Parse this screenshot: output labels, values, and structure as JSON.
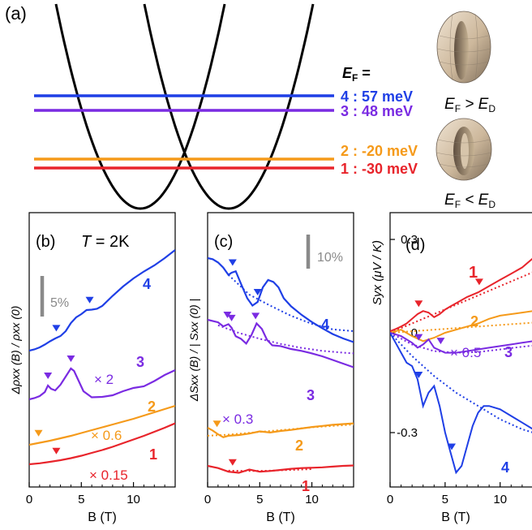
{
  "colors": {
    "blue": "#1f3fe6",
    "violet": "#7a2be2",
    "orange": "#f59a1a",
    "red": "#e8242b",
    "gray": "#8a8a8a",
    "black": "#000000"
  },
  "panel_a": {
    "label": "(a)",
    "ef_title": "E",
    "ef_title_sub": "F",
    "ef_title_suffix": " =",
    "levels": [
      {
        "label": "4 : 57 meV",
        "color": "#1f3fe6"
      },
      {
        "label": "3 : 48 meV",
        "color": "#7a2be2"
      },
      {
        "label": "2 : -20 meV",
        "color": "#f59a1a"
      },
      {
        "label": "1 : -30 meV",
        "color": "#e8242b"
      }
    ],
    "fermi_surfaces": [
      {
        "relation": "E_F > E_D",
        "l1": "E",
        "s1": "F",
        "op": " > E",
        "s2": "D"
      },
      {
        "relation": "E_F < E_D",
        "l1": "E",
        "s1": "F",
        "op": " < E",
        "s2": "D"
      }
    ]
  },
  "chart_data": [
    {
      "type": "line",
      "panel": "(b)",
      "annotation": "T = 2K",
      "annotation_parts": {
        "t": "T",
        "rest": " = 2K"
      },
      "ylabel": "Δρxx (B) / ρxx (0)",
      "xlabel": "B (T)",
      "xlim": [
        0,
        14
      ],
      "xticks": [
        0,
        5,
        10
      ],
      "yticks": [],
      "scale_bar": "5%",
      "scale_bar_value": 5,
      "series": [
        {
          "name": "4",
          "color": "#1f3fe6",
          "x": [
            0,
            0.5,
            1,
            1.5,
            2,
            2.5,
            3,
            3.5,
            4,
            4.5,
            5,
            5.5,
            6,
            6.5,
            7,
            8,
            9,
            10,
            11,
            12,
            13,
            14
          ],
          "y": [
            0,
            0.3,
            0.8,
            1.5,
            2.3,
            3.0,
            3.6,
            4.8,
            6.8,
            8.2,
            9.0,
            10.0,
            10.1,
            10.3,
            11.0,
            13.5,
            15.8,
            17.8,
            19.5,
            21.0,
            22.8,
            24.8
          ]
        },
        {
          "name": "3",
          "color": "#7a2be2",
          "multiplier": "× 2",
          "x": [
            0,
            0.5,
            1,
            1.5,
            1.8,
            2.1,
            2.5,
            3,
            3.5,
            4,
            4.3,
            4.7,
            5.2,
            6,
            7,
            8,
            9,
            10,
            11,
            12,
            13,
            14
          ],
          "y": [
            0,
            0.3,
            0.8,
            1.8,
            3.4,
            2.6,
            2.2,
            3.6,
            5.6,
            7.6,
            7.0,
            4.8,
            2.0,
            0.5,
            0.6,
            1.0,
            2.0,
            2.8,
            3.2,
            4.5,
            6.0,
            7.2
          ]
        },
        {
          "name": "2",
          "color": "#f59a1a",
          "multiplier": "× 0.6",
          "x": [
            0,
            1,
            2,
            3,
            4,
            5,
            6,
            7,
            8,
            9,
            10,
            11,
            12,
            13,
            14
          ],
          "y": [
            0,
            0.5,
            1.0,
            1.6,
            2.2,
            2.9,
            3.6,
            4.3,
            5.0,
            5.7,
            6.4,
            7.2,
            8.0,
            8.8,
            9.6
          ]
        },
        {
          "name": "1",
          "color": "#e8242b",
          "multiplier": "× 0.15",
          "x": [
            0,
            1,
            2,
            3,
            4,
            5,
            6,
            7,
            8,
            9,
            10,
            11,
            12,
            13,
            14
          ],
          "y": [
            0,
            0.25,
            0.6,
            1.0,
            1.5,
            2.1,
            2.8,
            3.5,
            4.3,
            5.2,
            6.1,
            7.0,
            8.0,
            9.0,
            10.1
          ]
        }
      ],
      "markers": [
        {
          "series": "4",
          "x": [
            2.6,
            5.8
          ]
        },
        {
          "series": "3",
          "x": [
            1.8,
            4.0
          ]
        },
        {
          "series": "2",
          "x": [
            0.9
          ]
        },
        {
          "series": "1",
          "x": [
            2.6
          ]
        }
      ]
    },
    {
      "type": "line",
      "panel": "(c)",
      "ylabel": "ΔSxx (B) / | Sxx (0) |",
      "xlabel": "B (T)",
      "xlim": [
        0,
        14
      ],
      "xticks": [
        0,
        5,
        10
      ],
      "yticks": [],
      "scale_bar": "10%",
      "scale_bar_value": 10,
      "series": [
        {
          "name": "4",
          "color": "#1f3fe6",
          "x": [
            0,
            0.5,
            1,
            1.5,
            2,
            2.3,
            2.7,
            3.2,
            3.8,
            4.3,
            4.8,
            5.3,
            5.8,
            6.3,
            6.8,
            7.3,
            8,
            9,
            10,
            11,
            12,
            13,
            14
          ],
          "y": [
            0,
            -0.3,
            -1.2,
            -2.6,
            -4.6,
            -4.0,
            -3.6,
            -7.0,
            -11.0,
            -13.0,
            -12.0,
            -8.0,
            -6.0,
            -6.5,
            -8.0,
            -11.0,
            -13.2,
            -15.5,
            -17.5,
            -19.2,
            -20.8,
            -22.0,
            -23.0
          ]
        },
        {
          "name": "3",
          "color": "#7a2be2",
          "multiplier": "× 0.3",
          "x": [
            0,
            1,
            1.5,
            2,
            2.3,
            2.7,
            3.2,
            3.7,
            4.2,
            4.7,
            5.2,
            5.7,
            6.2,
            7,
            8,
            9,
            10,
            11,
            12,
            13,
            14
          ],
          "y": [
            0,
            -0.7,
            -1.8,
            -1.2,
            -2.2,
            -4.5,
            -5.2,
            -6.5,
            -4.2,
            -1.0,
            -2.5,
            -5.5,
            -7.0,
            -7.2,
            -8.0,
            -8.5,
            -9.2,
            -10.0,
            -11.0,
            -12.0,
            -13.0
          ]
        },
        {
          "name": "2",
          "color": "#f59a1a",
          "x": [
            0,
            0.5,
            1,
            1.5,
            2,
            3,
            4,
            5,
            6,
            7,
            8,
            9,
            10,
            11,
            12,
            13,
            14
          ],
          "y": [
            0,
            -0.8,
            -1.8,
            -2.6,
            -2.2,
            -2.0,
            -1.6,
            -1.0,
            -1.3,
            -0.9,
            -0.6,
            -0.2,
            0.2,
            0.5,
            0.8,
            1.0,
            1.2
          ]
        },
        {
          "name": "1",
          "color": "#e8242b",
          "x": [
            0,
            1,
            2,
            3,
            4,
            5,
            6,
            7,
            8,
            9,
            10,
            11,
            12,
            13,
            14
          ],
          "y": [
            0,
            -0.6,
            -1.6,
            -1.9,
            -1.0,
            -1.6,
            -1.4,
            -1.1,
            -0.8,
            -0.6,
            -0.5,
            -0.4,
            -0.2,
            0.0,
            0.1
          ]
        }
      ],
      "markers": [
        {
          "series": "4",
          "x": [
            2.4,
            4.8
          ]
        },
        {
          "series": "3",
          "x": [
            1.9,
            2.3,
            4.6
          ]
        },
        {
          "series": "2",
          "x": [
            0.9
          ]
        },
        {
          "series": "1",
          "x": [
            2.4
          ]
        }
      ],
      "fits": [
        {
          "series": "4",
          "x": [
            2,
            4,
            6,
            8,
            10,
            12,
            14
          ],
          "y": [
            -4.6,
            -10.0,
            -13.0,
            -15.8,
            -18.0,
            -19.5,
            -20.0
          ]
        },
        {
          "series": "3",
          "x": [
            1,
            3,
            5,
            7,
            9,
            11,
            13,
            14
          ],
          "y": [
            -1.5,
            -3.6,
            -5.2,
            -6.6,
            -7.7,
            -8.5,
            -9.0,
            -9.2
          ]
        },
        {
          "series": "2",
          "x": [
            0,
            2,
            4,
            6,
            8,
            10,
            12,
            14
          ],
          "y": [
            -2.2,
            -1.9,
            -1.4,
            -0.9,
            -0.4,
            0.1,
            0.5,
            0.9
          ]
        },
        {
          "series": "1",
          "x": [
            2,
            4,
            6,
            8,
            10
          ],
          "y": [
            -1.3,
            -1.4,
            -1.3,
            -1.1,
            -0.9
          ]
        }
      ]
    },
    {
      "type": "line",
      "panel": "(d)",
      "ylabel": "Syx (μV / K)",
      "xlabel": "B (T)",
      "xlim": [
        0,
        14
      ],
      "ylim": [
        -0.5,
        0.35
      ],
      "xticks": [
        0,
        5,
        10
      ],
      "yticks": [
        0.3,
        0,
        -0.3
      ],
      "ytick_labels": [
        "0.3",
        "0",
        "-0.3"
      ],
      "series": [
        {
          "name": "1",
          "color": "#e8242b",
          "x": [
            0,
            0.5,
            1,
            1.5,
            2,
            2.5,
            3,
            3.5,
            4,
            4.5,
            5,
            5.5,
            6,
            6.5,
            7,
            8,
            9,
            10,
            11,
            12,
            13,
            14
          ],
          "y": [
            0.005,
            0.012,
            0.02,
            0.03,
            0.045,
            0.06,
            0.07,
            0.065,
            0.05,
            0.06,
            0.075,
            0.085,
            0.095,
            0.105,
            0.115,
            0.13,
            0.15,
            0.17,
            0.19,
            0.21,
            0.24,
            0.24
          ]
        },
        {
          "name": "2",
          "color": "#f59a1a",
          "x": [
            0,
            1,
            2,
            3,
            4,
            5,
            6,
            7,
            8,
            9,
            10,
            11,
            12,
            13,
            14
          ],
          "y": [
            0.0,
            0.01,
            -0.01,
            -0.025,
            -0.015,
            0.0,
            0.01,
            0.02,
            0.03,
            0.045,
            0.055,
            0.06,
            0.065,
            0.07,
            0.075
          ]
        },
        {
          "name": "3",
          "color": "#7a2be2",
          "multiplier": "× 0.5",
          "x": [
            0,
            1,
            2,
            2.5,
            3,
            3.5,
            4,
            5,
            6,
            7,
            8,
            9,
            10,
            11,
            12,
            13,
            14
          ],
          "y": [
            0.0,
            -0.01,
            -0.03,
            -0.045,
            -0.035,
            -0.02,
            -0.045,
            -0.06,
            -0.06,
            -0.055,
            -0.05,
            -0.045,
            -0.04,
            -0.035,
            -0.03,
            -0.025,
            -0.02
          ]
        },
        {
          "name": "4",
          "color": "#1f3fe6",
          "x": [
            0,
            0.5,
            1,
            1.5,
            2,
            2.5,
            3,
            3.5,
            4,
            4.5,
            5,
            5.5,
            6,
            6.5,
            7,
            7.5,
            8,
            8.5,
            9,
            10,
            11,
            12,
            13,
            14
          ],
          "y": [
            0,
            -0.03,
            -0.06,
            -0.09,
            -0.1,
            -0.14,
            -0.22,
            -0.18,
            -0.16,
            -0.22,
            -0.3,
            -0.36,
            -0.42,
            -0.4,
            -0.34,
            -0.28,
            -0.24,
            -0.22,
            -0.22,
            -0.23,
            -0.25,
            -0.27,
            -0.29,
            -0.31
          ]
        }
      ],
      "markers": [
        {
          "series": "1",
          "x": [
            2.6,
            8.1
          ]
        },
        {
          "series": "3",
          "x": [
            2.6,
            4.6
          ]
        },
        {
          "series": "4",
          "x": [
            2.6,
            5.6
          ]
        }
      ],
      "fits": [
        {
          "series": "1",
          "x": [
            0,
            2,
            4,
            6,
            8,
            10,
            12,
            14
          ],
          "y": [
            0.0,
            0.03,
            0.06,
            0.09,
            0.12,
            0.15,
            0.18,
            0.21
          ]
        },
        {
          "series": "2",
          "x": [
            0,
            2,
            4,
            6,
            8,
            10,
            12,
            14
          ],
          "y": [
            0.0,
            0.005,
            0.01,
            0.015,
            0.02,
            0.025,
            0.03,
            0.035
          ]
        },
        {
          "series": "3",
          "x": [
            0,
            2,
            4,
            6,
            8,
            10,
            12,
            14
          ],
          "y": [
            0.0,
            -0.035,
            -0.055,
            -0.06,
            -0.058,
            -0.05,
            -0.042,
            -0.035
          ]
        },
        {
          "series": "4",
          "x": [
            0,
            2,
            4,
            6,
            8,
            10,
            12,
            14
          ],
          "y": [
            0.0,
            -0.07,
            -0.13,
            -0.18,
            -0.22,
            -0.26,
            -0.29,
            -0.31
          ]
        }
      ]
    }
  ]
}
